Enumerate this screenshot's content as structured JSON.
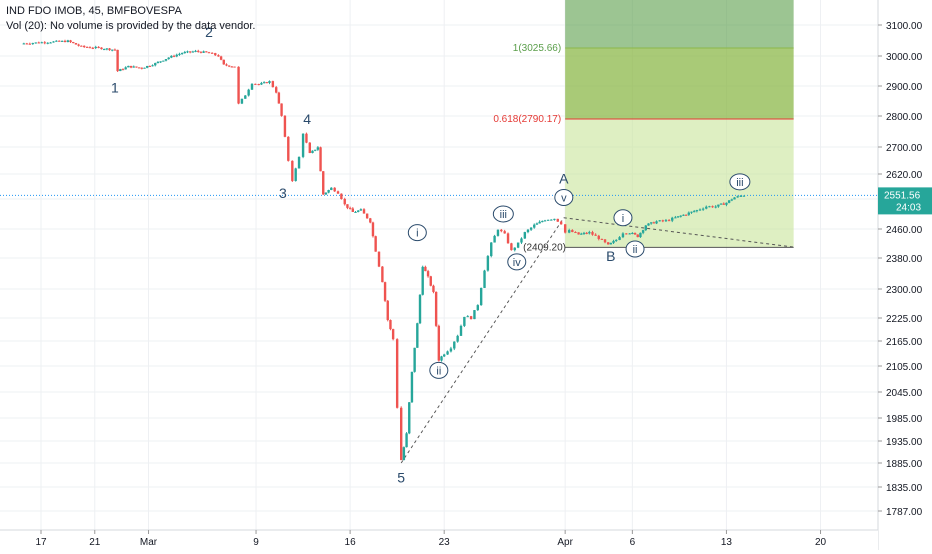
{
  "header": {
    "title": "IND FDO IMOB, 45, BMFBOVESPA",
    "volume_note": "Vol (20): No volume is provided by the data vendor."
  },
  "colors": {
    "up": "#26a69a",
    "down": "#ef5350",
    "wave_label": "#2a4a6b",
    "grid": "#eef0f3",
    "axis_text": "#131722",
    "price_line": "#2196f3",
    "fib_upper": "#5a9e4a",
    "fib_mid": "#8cb84a",
    "fib_lower": "#c8e59a",
    "fib_line_0618": "#e53935"
  },
  "chart_data": {
    "type": "candlestick",
    "y_ticks": [
      1787,
      1835,
      1885,
      1935,
      1985,
      2045,
      2105,
      2165,
      2225,
      2300,
      2380,
      2460,
      2540,
      2620,
      2700,
      2800,
      2900,
      3000,
      3100
    ],
    "y_tick_labels": [
      "1787.00",
      "1835.00",
      "1885.00",
      "1935.00",
      "1985.00",
      "2045.00",
      "2105.00",
      "2165.00",
      "2225.00",
      "2300.00",
      "2380.00",
      "2460.00",
      "2540.00",
      "2620.00",
      "2700.00",
      "2800.00",
      "2900.00",
      "3000.00",
      "3100.00"
    ],
    "x_ticks": [
      {
        "label": "17",
        "day": 0
      },
      {
        "label": "21",
        "day": 4
      },
      {
        "label": "Mar",
        "day": 8
      },
      {
        "label": "9",
        "day": 16
      },
      {
        "label": "16",
        "day": 23
      },
      {
        "label": "23",
        "day": 30
      },
      {
        "label": "Apr",
        "day": 39
      },
      {
        "label": "6",
        "day": 44
      },
      {
        "label": "13",
        "day": 51
      },
      {
        "label": "20",
        "day": 58
      }
    ],
    "price_path": [
      [
        -1.5,
        3040
      ],
      [
        0.5,
        3045
      ],
      [
        2.0,
        3048
      ],
      [
        3.0,
        3030
      ],
      [
        4.5,
        3025
      ],
      [
        5.5,
        3020
      ],
      [
        5.7,
        2950
      ],
      [
        6.5,
        2965
      ],
      [
        7.5,
        2960
      ],
      [
        8.5,
        2975
      ],
      [
        9.5,
        2995
      ],
      [
        10.5,
        3010
      ],
      [
        11.5,
        3015
      ],
      [
        12.5,
        3010
      ],
      [
        13.2,
        3000
      ],
      [
        13.6,
        2970
      ],
      [
        14.4,
        2965
      ],
      [
        14.7,
        2840
      ],
      [
        15.2,
        2870
      ],
      [
        15.7,
        2910
      ],
      [
        16.2,
        2905
      ],
      [
        17.0,
        2915
      ],
      [
        17.5,
        2880
      ],
      [
        17.9,
        2800
      ],
      [
        18.4,
        2660
      ],
      [
        18.7,
        2600
      ],
      [
        19.2,
        2670
      ],
      [
        19.5,
        2745
      ],
      [
        20.0,
        2680
      ],
      [
        20.6,
        2700
      ],
      [
        21.0,
        2555
      ],
      [
        21.6,
        2575
      ],
      [
        22.1,
        2560
      ],
      [
        22.6,
        2525
      ],
      [
        23.2,
        2505
      ],
      [
        23.8,
        2510
      ],
      [
        24.5,
        2480
      ],
      [
        24.9,
        2400
      ],
      [
        25.4,
        2320
      ],
      [
        25.8,
        2220
      ],
      [
        26.2,
        2170
      ],
      [
        26.5,
        2010
      ],
      [
        26.8,
        1892
      ],
      [
        27.2,
        1950
      ],
      [
        27.6,
        2090
      ],
      [
        28.0,
        2210
      ],
      [
        28.4,
        2360
      ],
      [
        28.8,
        2330
      ],
      [
        29.2,
        2290
      ],
      [
        29.6,
        2120
      ],
      [
        30.0,
        2135
      ],
      [
        30.5,
        2150
      ],
      [
        31.0,
        2180
      ],
      [
        31.5,
        2230
      ],
      [
        32.0,
        2225
      ],
      [
        32.5,
        2260
      ],
      [
        33.0,
        2350
      ],
      [
        33.5,
        2420
      ],
      [
        34.0,
        2460
      ],
      [
        34.5,
        2445
      ],
      [
        35.0,
        2400
      ],
      [
        35.5,
        2420
      ],
      [
        36.0,
        2450
      ],
      [
        36.7,
        2470
      ],
      [
        37.5,
        2485
      ],
      [
        38.2,
        2488
      ],
      [
        38.7,
        2475
      ],
      [
        39.0,
        2450
      ],
      [
        39.3,
        2455
      ],
      [
        40.0,
        2445
      ],
      [
        40.8,
        2450
      ],
      [
        41.5,
        2435
      ],
      [
        42.2,
        2415
      ],
      [
        42.8,
        2430
      ],
      [
        43.3,
        2450
      ],
      [
        43.8,
        2450
      ],
      [
        44.4,
        2440
      ],
      [
        45.0,
        2470
      ],
      [
        45.8,
        2480
      ],
      [
        46.5,
        2482
      ],
      [
        47.2,
        2490
      ],
      [
        48.0,
        2500
      ],
      [
        48.8,
        2510
      ],
      [
        49.5,
        2520
      ],
      [
        50.2,
        2520
      ],
      [
        51.0,
        2530
      ],
      [
        51.6,
        2545
      ],
      [
        52.3,
        2552
      ]
    ],
    "current_price": 2551.56,
    "current_price_label": "2551.56",
    "countdown_label": "24:03",
    "fib_levels": [
      {
        "ratio_label": "1(3025.66)",
        "price": 3025.66
      },
      {
        "ratio_label": "0.618(2790.17)",
        "price": 2790.17
      },
      {
        "ratio_label": "(2409.20)",
        "price": 2409.2
      }
    ],
    "fib_top_price": 3190,
    "fib_x_start_day": 39,
    "fib_x_end_day": 56,
    "trend_lines": [
      {
        "from": [
          26.8,
          1885
        ],
        "to": [
          38.9,
          2490
        ]
      },
      {
        "from": [
          38.9,
          2490
        ],
        "to": [
          56,
          2410
        ]
      }
    ],
    "wave_labels": [
      {
        "text": "1",
        "day": 5.5,
        "price": 2895,
        "circled": false
      },
      {
        "text": "2",
        "day": 12.5,
        "price": 3078,
        "circled": false
      },
      {
        "text": "3",
        "day": 18.0,
        "price": 2560,
        "circled": false
      },
      {
        "text": "4",
        "day": 19.8,
        "price": 2790,
        "circled": false
      },
      {
        "text": "5",
        "day": 26.8,
        "price": 1855,
        "circled": false
      },
      {
        "text": "A",
        "day": 38.9,
        "price": 2605,
        "circled": false
      },
      {
        "text": "B",
        "day": 42.4,
        "price": 2385,
        "circled": false
      },
      {
        "text": "i",
        "day": 28.0,
        "price": 2450,
        "circled": true
      },
      {
        "text": "ii",
        "day": 29.6,
        "price": 2095,
        "circled": true
      },
      {
        "text": "iii",
        "day": 34.4,
        "price": 2500,
        "circled": true
      },
      {
        "text": "iv",
        "day": 35.4,
        "price": 2370,
        "circled": true
      },
      {
        "text": "v",
        "day": 38.9,
        "price": 2545,
        "circled": true
      },
      {
        "text": "i",
        "day": 43.3,
        "price": 2490,
        "circled": true
      },
      {
        "text": "ii",
        "day": 44.2,
        "price": 2405,
        "circled": true
      },
      {
        "text": "iii",
        "day": 52.0,
        "price": 2595,
        "circled": true
      }
    ]
  }
}
